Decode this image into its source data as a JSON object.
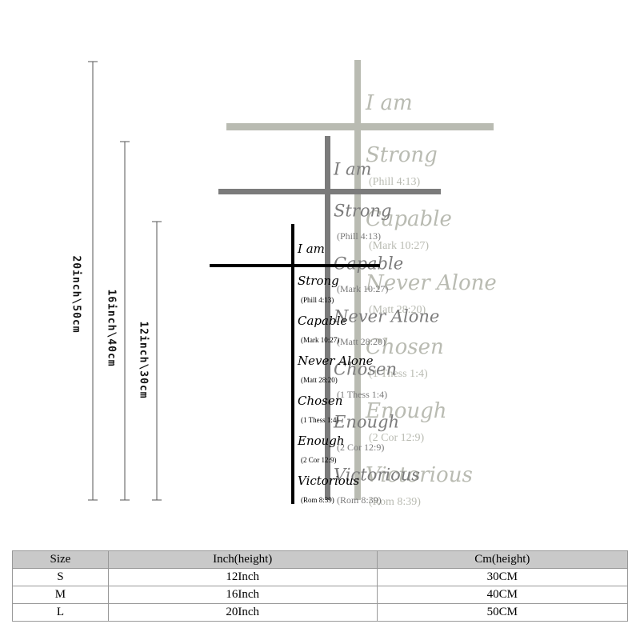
{
  "crosses": [
    {
      "dimension": "20inch\\50cm",
      "title": "I am",
      "words": [
        "Strong",
        "Capable",
        "Never Alone",
        "Chosen",
        "Enough",
        "Victorious"
      ],
      "verses": [
        "(Phill 4:13)",
        "(Mark 10:27)",
        "(Matt 28:20)",
        "(1 Thess 1:4)",
        "(2 Cor 12:9)",
        "(Rom 8:39)"
      ]
    },
    {
      "dimension": "16inch\\40cm",
      "title": "I am",
      "words": [
        "Strong",
        "Capable",
        "Never Alone",
        "Chosen",
        "Enough",
        "Victorious"
      ],
      "verses": [
        "(Phill 4:13)",
        "(Mark 10:27)",
        "(Matt 28:20)",
        "(1 Thess 1:4)",
        "(2 Cor 12:9)",
        "(Rom 8:39)"
      ]
    },
    {
      "dimension": "12inch\\30cm",
      "title": "I am",
      "words": [
        "Strong",
        "Capable",
        "Never Alone",
        "Chosen",
        "Enough",
        "Victorious"
      ],
      "verses": [
        "(Phill 4:13)",
        "(Mark 10:27)",
        "(Matt 28:20)",
        "(1 Thess 1:4)",
        "(2 Cor 12:9)",
        "(Rom 8:39)"
      ]
    }
  ],
  "table": {
    "header": [
      "Size",
      "Inch(height)",
      "Cm(height)"
    ],
    "rows": [
      [
        "S",
        "12Inch",
        "30CM"
      ],
      [
        "M",
        "16Inch",
        "40CM"
      ],
      [
        "L",
        "20Inch",
        "50CM"
      ]
    ]
  }
}
